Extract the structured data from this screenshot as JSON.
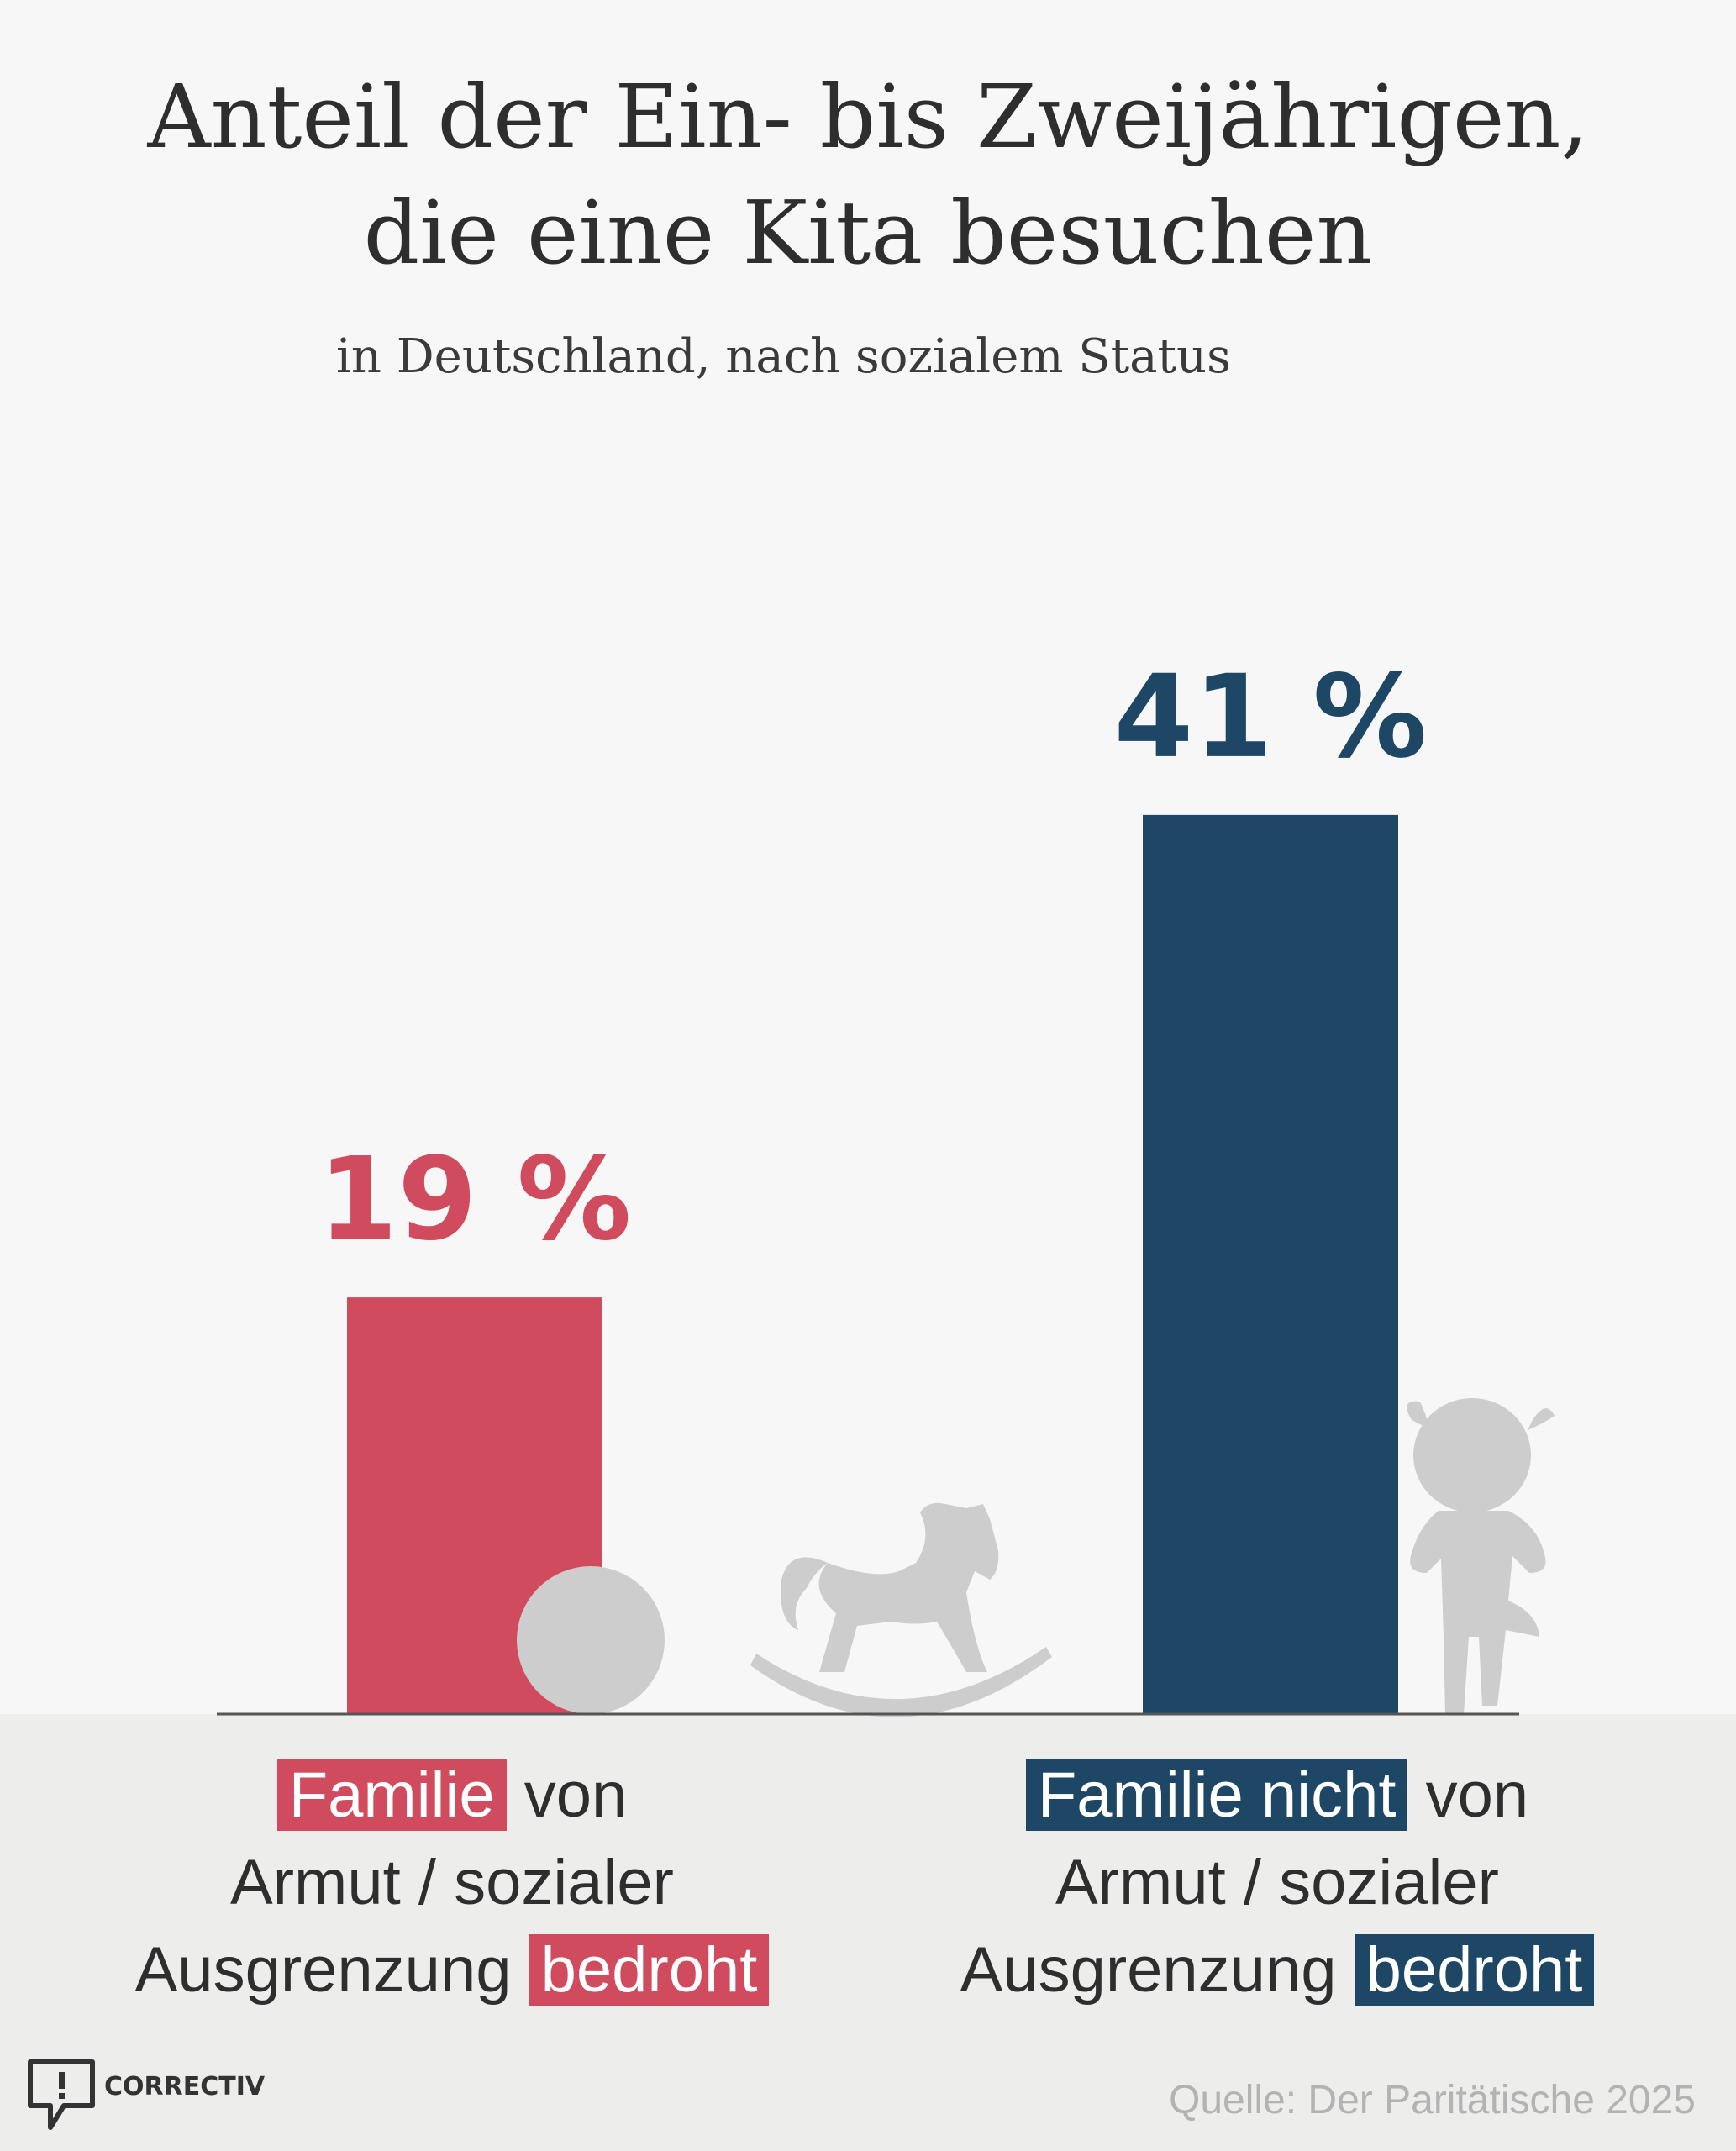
{
  "chart_data": {
    "type": "bar",
    "title": "Anteil der Ein- bis Zweijährigen, die eine Kita besuchen",
    "title_lines": [
      "Anteil der Ein- bis Zweijährigen,",
      "die eine Kita besuchen"
    ],
    "subtitle": "in Deutschland, nach sozialem Status",
    "unit": "%",
    "categories": [
      "Familie von Armut / sozialer Ausgrenzung bedroht",
      "Familie nicht von Armut / sozialer Ausgrenzung bedroht"
    ],
    "values": [
      19,
      41
    ],
    "value_labels": [
      "19 %",
      "41 %"
    ],
    "colors": [
      "#d14b5e",
      "#1e4766"
    ],
    "ylim": [
      0,
      50
    ],
    "grid": false,
    "legend": "none"
  },
  "labels": {
    "left": {
      "hl1": "Familie",
      "rest1": " von",
      "line2": "Armut / sozialer",
      "line3a": "Ausgrenzung ",
      "hl3": "bedroht"
    },
    "right": {
      "hl1": "Familie nicht",
      "rest1": " von",
      "line2": "Armut / sozialer",
      "line3a": "Ausgrenzung ",
      "hl3": "bedroht"
    }
  },
  "icons": [
    "ball-icon",
    "rocking-horse-icon",
    "child-icon",
    "correctiv-logo-icon"
  ],
  "logo_text": "CORRECTIV",
  "source": "Quelle: Der Paritätische 2025"
}
